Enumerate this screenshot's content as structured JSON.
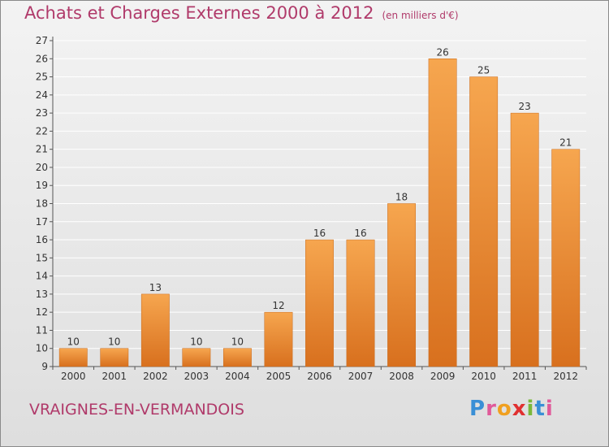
{
  "header": {
    "title": "Achats et Charges Externes 2000 à 2012",
    "subtitle": "(en milliers d'€)"
  },
  "footer": {
    "commune": "VRAIGNES-EN-VERMANDOIS",
    "brand": [
      "P",
      "r",
      "o",
      "x",
      "i",
      "t",
      "i"
    ],
    "brand_colors": [
      "#3a8fd6",
      "#e05a9a",
      "#f0a020",
      "#e03030",
      "#7ab83a",
      "#3a8fd6",
      "#e05a9a"
    ]
  },
  "colors": {
    "title": "#b03a6a",
    "bar_top": "#f6a64f",
    "bar_bottom": "#d8701e",
    "grid": "#ffffff"
  },
  "chart_data": {
    "type": "bar",
    "title": "Achats et Charges Externes 2000 à 2012",
    "subtitle": "(en milliers d'€)",
    "xlabel": "",
    "ylabel": "",
    "categories": [
      "2000",
      "2001",
      "2002",
      "2003",
      "2004",
      "2005",
      "2006",
      "2007",
      "2008",
      "2009",
      "2010",
      "2011",
      "2012"
    ],
    "values": [
      10,
      10,
      13,
      10,
      10,
      12,
      16,
      16,
      18,
      26,
      25,
      23,
      21
    ],
    "ylim": [
      9,
      27
    ],
    "yticks": [
      9,
      10,
      11,
      12,
      13,
      14,
      15,
      16,
      17,
      18,
      19,
      20,
      21,
      22,
      23,
      24,
      25,
      26,
      27
    ],
    "grid": true,
    "data_labels": true
  }
}
